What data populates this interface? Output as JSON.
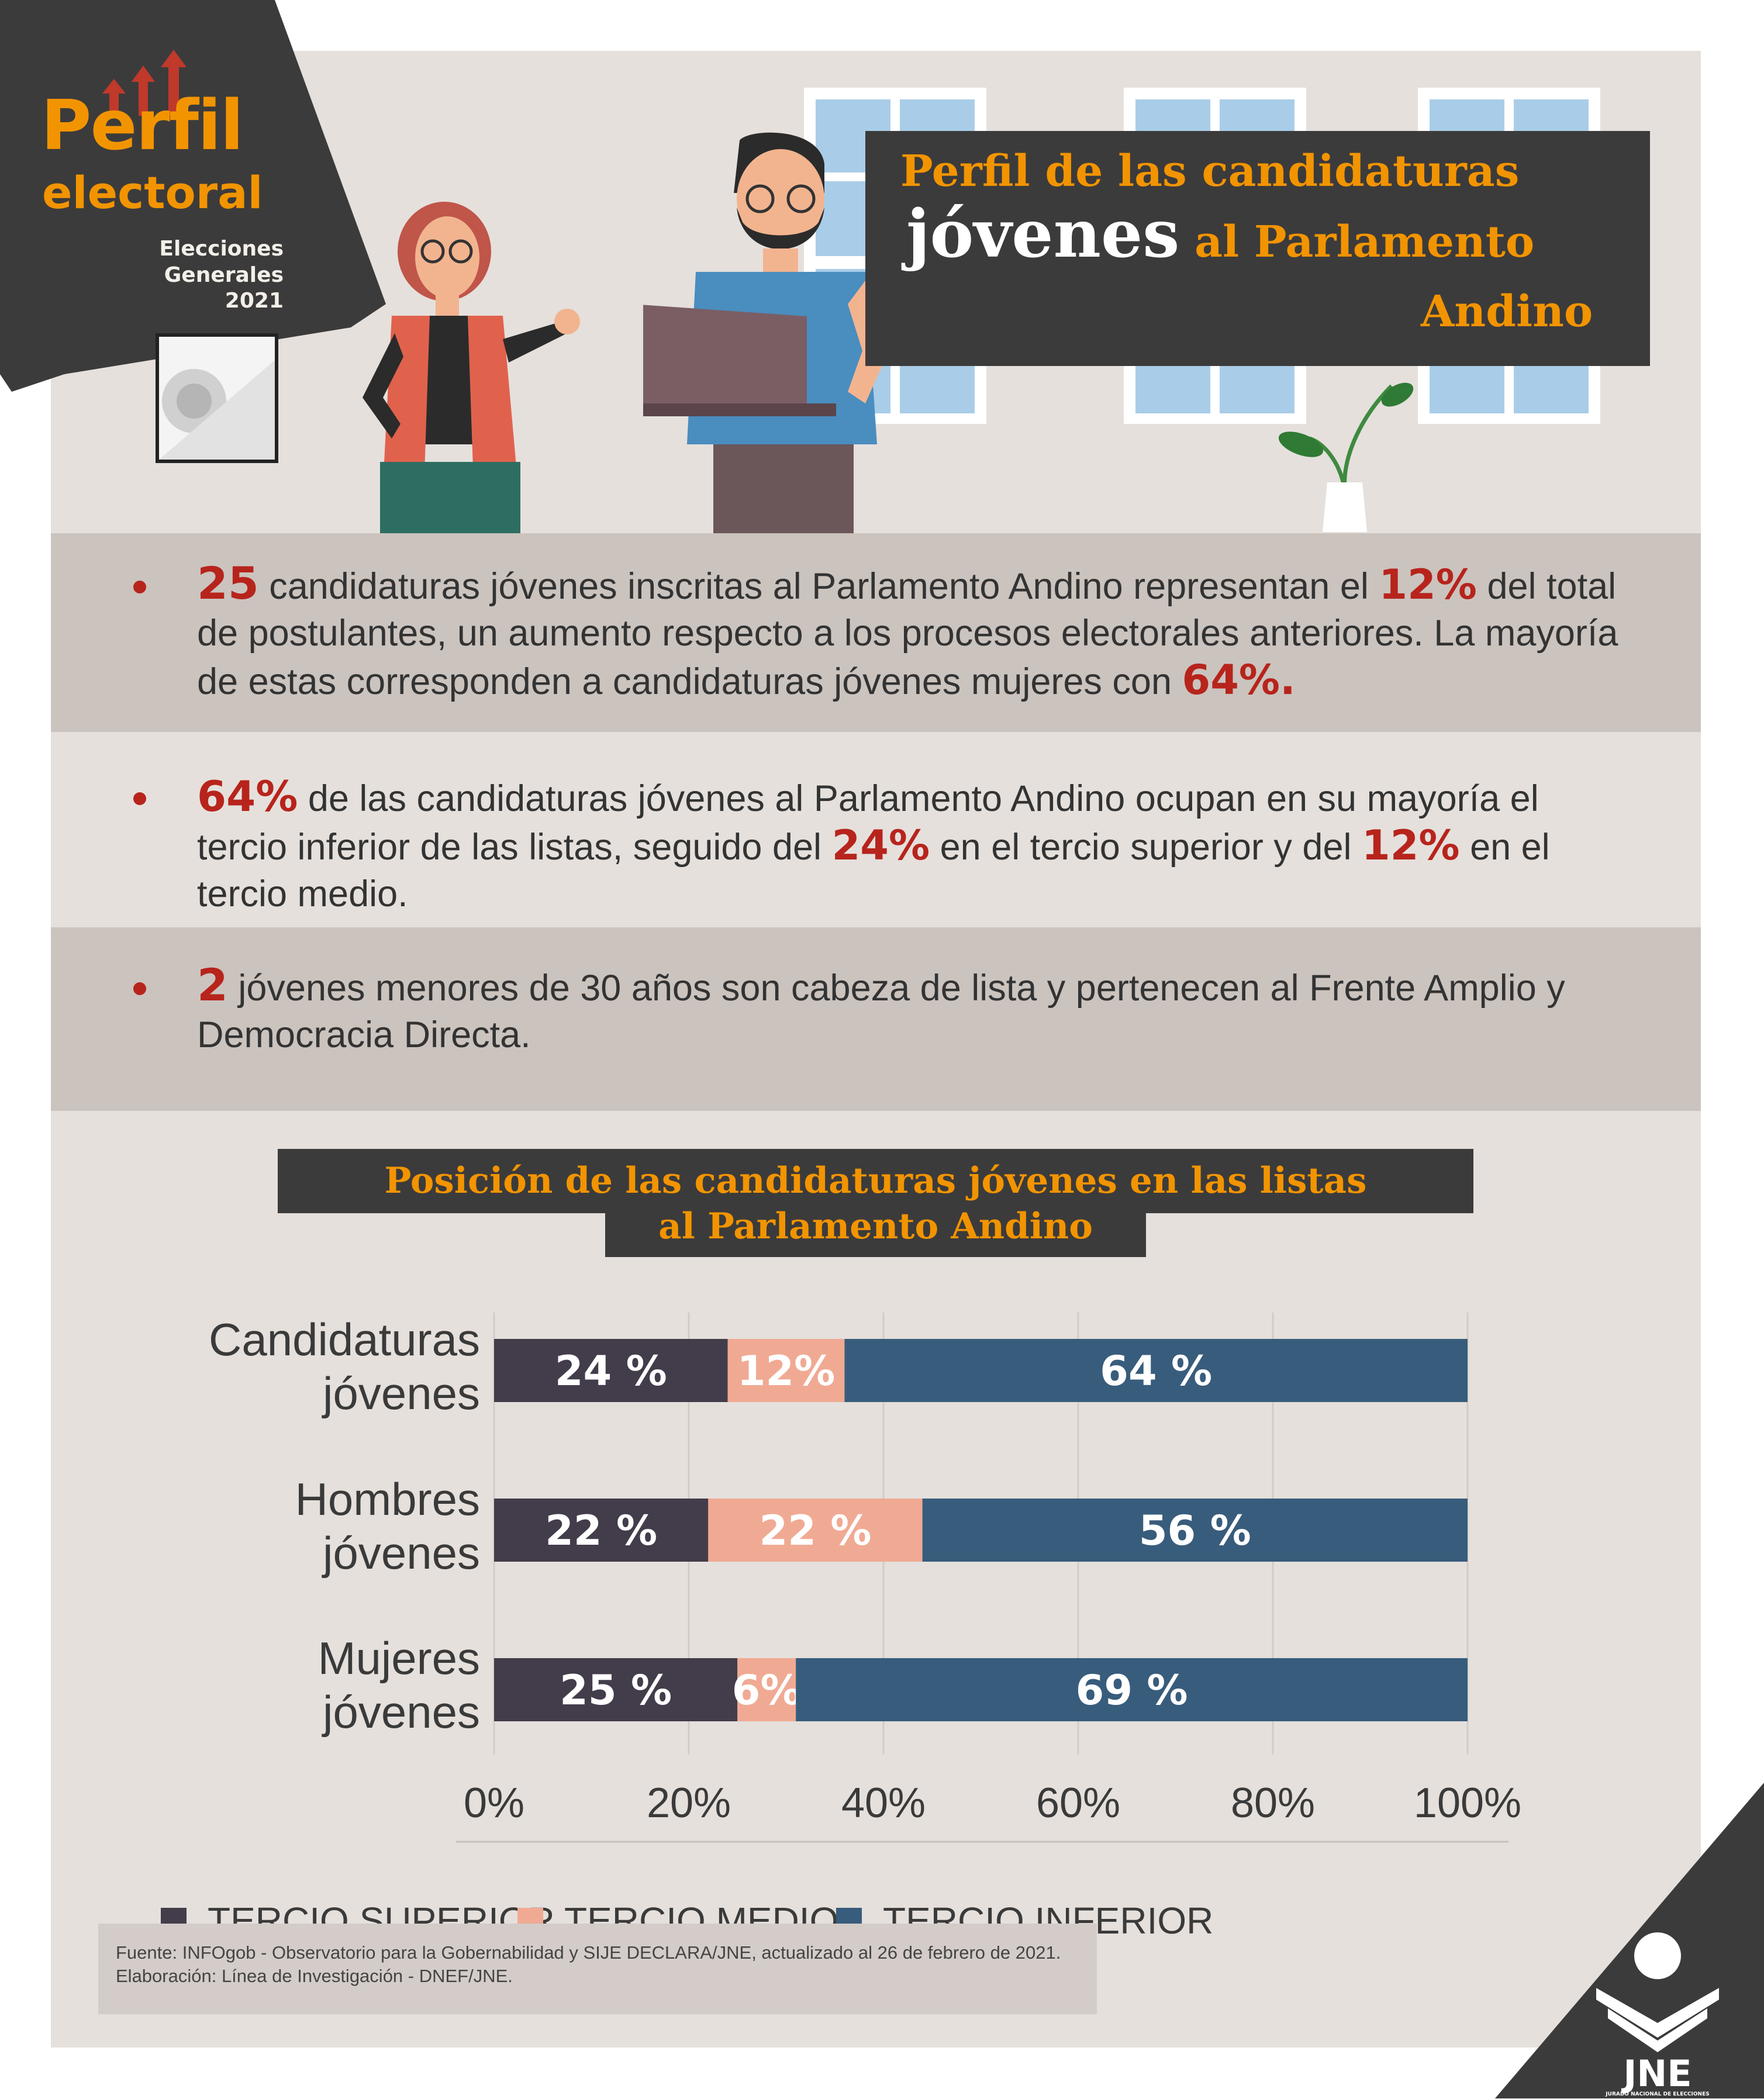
{
  "logo": {
    "title": "Perfil",
    "subtitle": "electoral",
    "line1": "Elecciones",
    "line2": "Generales",
    "year": "2021"
  },
  "header": {
    "title_line1": "Perfil de las candidaturas",
    "title_line2_highlight": "jóvenes",
    "title_line2_rest": " al Parlamento",
    "title_line3": "Andino"
  },
  "bullets": [
    {
      "parts": [
        {
          "text": "25",
          "hl": true
        },
        {
          "text": " candidaturas jóvenes inscritas al Parlamento Andino representan el ",
          "hl": false
        },
        {
          "text": "12%",
          "hl": true
        },
        {
          "text": " del total de postulantes, un aumento respecto a los procesos electorales anteriores. La mayoría de estas corresponden a candidaturas jóvenes mujeres con ",
          "hl": false
        },
        {
          "text": "64%.",
          "hl": true
        }
      ]
    },
    {
      "parts": [
        {
          "text": "64%",
          "hl": true
        },
        {
          "text": " de las candidaturas jóvenes al Parlamento Andino ocupan en su mayoría el tercio inferior de las listas, seguido del ",
          "hl": false
        },
        {
          "text": "24%",
          "hl": true
        },
        {
          "text": " en el tercio superior y del ",
          "hl": false
        },
        {
          "text": "12%",
          "hl": true
        },
        {
          "text": " en el tercio medio.",
          "hl": false
        }
      ]
    },
    {
      "parts": [
        {
          "text": "2",
          "hl": true
        },
        {
          "text": " jóvenes menores de 30 años son cabeza de lista y pertenecen al Frente Amplio y Democracia Directa.",
          "hl": false
        }
      ]
    }
  ],
  "chart_title": {
    "line1": "Posición de las candidaturas jóvenes en las listas",
    "line2": "al Parlamento Andino"
  },
  "colors": {
    "tercio_superior": "#433c4a",
    "tercio_medio": "#f0aa93",
    "tercio_inferior": "#385c7c",
    "accent_orange": "#f29400",
    "accent_red": "#b7241c",
    "dark": "#3c3b3b"
  },
  "chart_data": {
    "type": "bar",
    "orientation": "horizontal",
    "stacked": true,
    "categories": [
      "Candidaturas jóvenes",
      "Hombres jóvenes",
      "Mujeres jóvenes"
    ],
    "category_lines": [
      [
        "Candidaturas",
        "jóvenes"
      ],
      [
        "Hombres",
        "jóvenes"
      ],
      [
        "Mujeres",
        "jóvenes"
      ]
    ],
    "series": [
      {
        "name": "TERCIO SUPERIOR",
        "values": [
          24,
          22,
          25
        ],
        "labels": [
          "24 %",
          "22 %",
          "25 %"
        ]
      },
      {
        "name": "TERCIO MEDIO",
        "values": [
          12,
          22,
          6
        ],
        "labels": [
          "12%",
          "22 %",
          "6%"
        ]
      },
      {
        "name": "TERCIO INFERIOR",
        "values": [
          64,
          56,
          69
        ],
        "labels": [
          "64 %",
          "56 %",
          "69 %"
        ]
      }
    ],
    "xlim": [
      0,
      100
    ],
    "xticks": [
      "0%",
      "20%",
      "40%",
      "60%",
      "80%",
      "100%"
    ],
    "grid": true,
    "legend": "bottom"
  },
  "source": {
    "line1": "Fuente: INFOgob - Observatorio para la Gobernabilidad y SIJE DECLARA/JNE, actualizado al 26 de febrero de 2021.",
    "line2": "Elaboración: Línea de Investigación - DNEF/JNE."
  },
  "jne_logo": {
    "name": "JNE",
    "tagline": "JURADO NACIONAL DE ELECCIONES"
  }
}
